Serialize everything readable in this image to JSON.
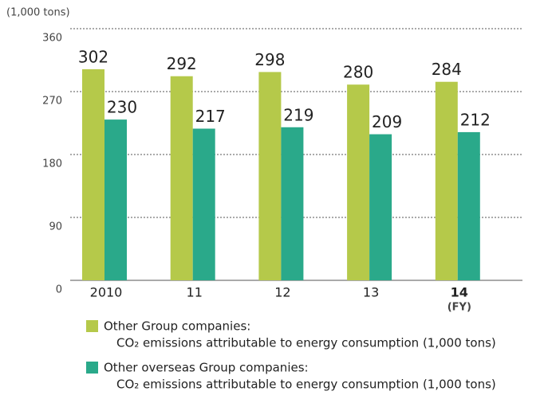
{
  "chart_data": {
    "type": "bar",
    "unit_label": "(1,000 tons)",
    "categories": [
      "2010",
      "11",
      "12",
      "13",
      "14"
    ],
    "axis_note": "(FY)",
    "series": [
      {
        "name": "Other Group companies:",
        "description": "CO₂ emissions attributable to energy consumption (1,000 tons)",
        "color": "#b5c94a",
        "values": [
          302,
          292,
          298,
          280,
          284
        ]
      },
      {
        "name": "Other overseas Group companies:",
        "description": "CO₂ emissions attributable to energy consumption (1,000 tons)",
        "color": "#2aa98a",
        "values": [
          230,
          217,
          219,
          209,
          212
        ]
      }
    ],
    "ylim": [
      0,
      360
    ],
    "yticks": [
      0,
      90,
      180,
      270,
      360
    ],
    "grid": true
  }
}
